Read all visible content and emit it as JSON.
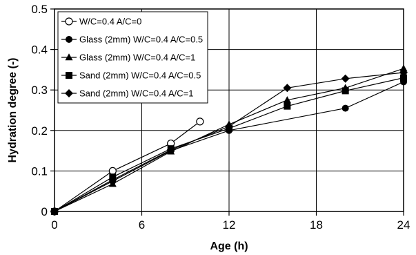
{
  "chart_data": {
    "type": "line",
    "xlabel": "Age (h)",
    "ylabel": "Hydration degree (-)",
    "xlim": [
      0,
      24
    ],
    "ylim": [
      0,
      0.5
    ],
    "xticks": [
      0,
      6,
      12,
      18,
      24
    ],
    "yticks": [
      0,
      0.1,
      0.2,
      0.3,
      0.4,
      0.5
    ],
    "xtick_labels": [
      "0",
      "6",
      "12",
      "18",
      "24"
    ],
    "ytick_labels": [
      "0",
      "0.1",
      "0.2",
      "0.3",
      "0.4",
      "0.5"
    ],
    "grid": true,
    "legend_position": "top-left",
    "series": [
      {
        "name": "W/C=0.4 A/C=0",
        "marker": "open-circle",
        "points": [
          [
            0,
            0
          ],
          [
            4,
            0.1
          ],
          [
            8,
            0.168
          ],
          [
            10,
            0.222
          ]
        ]
      },
      {
        "name": "Glass (2mm) W/C=0.4 A/C=0.5",
        "marker": "filled-circle",
        "points": [
          [
            0,
            0
          ],
          [
            4,
            0.075
          ],
          [
            8,
            0.15
          ],
          [
            12,
            0.2
          ],
          [
            20,
            0.255
          ],
          [
            24,
            0.32
          ]
        ]
      },
      {
        "name": "Glass (2mm) W/C=0.4 A/C=1",
        "marker": "triangle",
        "points": [
          [
            0,
            0
          ],
          [
            4,
            0.068
          ],
          [
            8,
            0.148
          ],
          [
            12,
            0.215
          ],
          [
            16,
            0.275
          ],
          [
            20,
            0.305
          ],
          [
            24,
            0.353
          ]
        ]
      },
      {
        "name": "Sand (2mm) W/C=0.4 A/C=0.5",
        "marker": "square",
        "points": [
          [
            0,
            0
          ],
          [
            4,
            0.085
          ],
          [
            8,
            0.155
          ],
          [
            12,
            0.205
          ],
          [
            16,
            0.26
          ],
          [
            20,
            0.298
          ],
          [
            24,
            0.33
          ]
        ]
      },
      {
        "name": "Sand (2mm) W/C=0.4 A/C=1",
        "marker": "diamond",
        "points": [
          [
            0,
            0
          ],
          [
            4,
            0.078
          ],
          [
            8,
            0.152
          ],
          [
            12,
            0.21
          ],
          [
            16,
            0.305
          ],
          [
            20,
            0.328
          ],
          [
            24,
            0.343
          ]
        ]
      }
    ]
  }
}
